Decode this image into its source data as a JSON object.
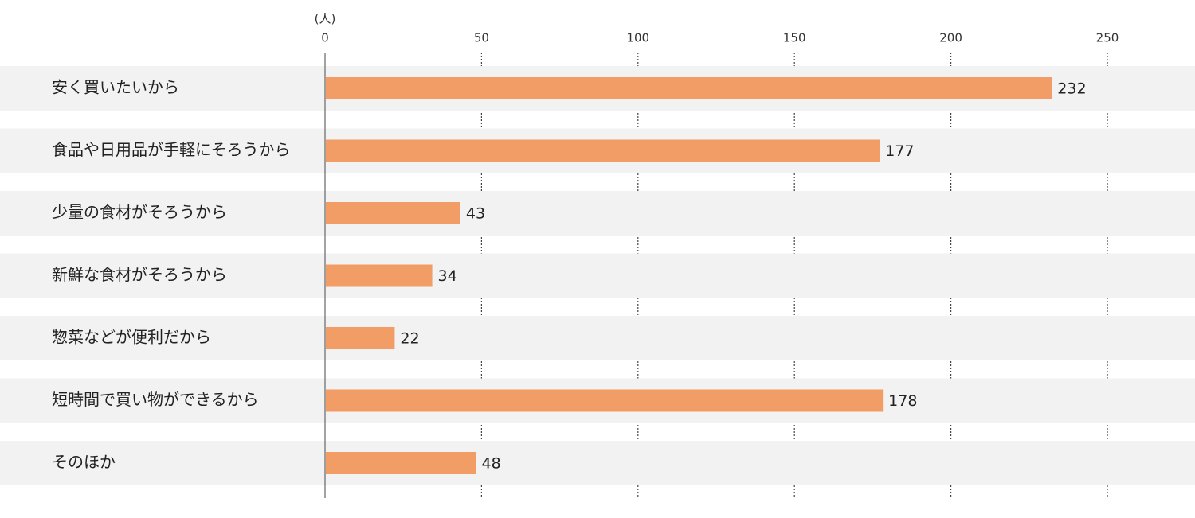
{
  "chart_data": {
    "type": "bar",
    "orientation": "horizontal",
    "x_label": "(人)",
    "categories": [
      "安く買いたいから",
      "食品や日用品が手軽にそろうから",
      "少量の食材がそろうから",
      "新鮮な食材がそろうから",
      "惣菜などが便利だから",
      "短時間で買い物ができるから",
      "そのほか"
    ],
    "values": [
      232,
      177,
      43,
      34,
      22,
      178,
      48
    ],
    "color": "#f29c66",
    "xlim": [
      0,
      250
    ],
    "xticks": [
      0,
      50,
      100,
      150,
      200,
      250
    ],
    "grid": true
  }
}
